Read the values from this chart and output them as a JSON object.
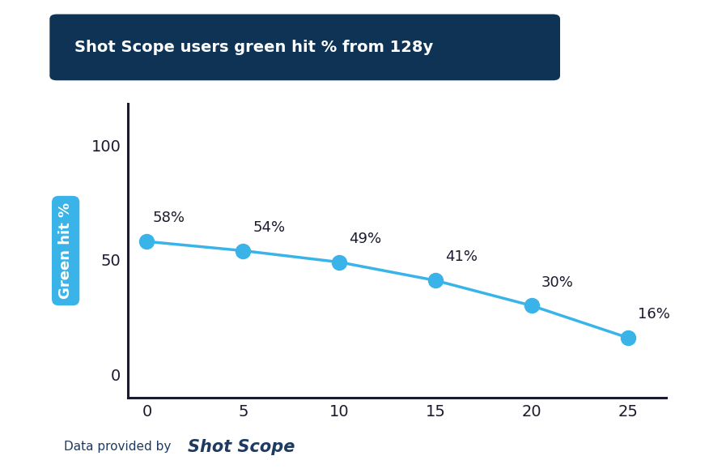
{
  "title": "Shot Scope users green hit % from 128y",
  "title_bg_color": "#0f3354",
  "title_text_color": "#ffffff",
  "x_values": [
    0,
    5,
    10,
    15,
    20,
    25
  ],
  "y_values": [
    58,
    54,
    49,
    41,
    30,
    16
  ],
  "labels": [
    "58%",
    "54%",
    "49%",
    "41%",
    "30%",
    "16%"
  ],
  "label_offsets_x": [
    0.3,
    0.5,
    0.5,
    0.5,
    0.5,
    0.5
  ],
  "label_offsets_y": [
    7,
    7,
    7,
    7,
    7,
    7
  ],
  "line_color": "#3ab4e8",
  "marker_color": "#3ab4e8",
  "ylabel": "Green hit %",
  "ylabel_bg_color": "#3ab4e8",
  "ylabel_text_color": "#ffffff",
  "xlim": [
    -1,
    27
  ],
  "ylim": [
    -10,
    118
  ],
  "yticks": [
    0,
    50,
    100
  ],
  "xticks": [
    0,
    5,
    10,
    15,
    20,
    25
  ],
  "background_color": "#ffffff",
  "tick_label_color": "#1a1a2e",
  "annotation_color": "#1a1a2e",
  "footer_text": "Data provided by",
  "footer_brand": "Shot Scope",
  "footer_color": "#1e3a5f",
  "spine_color": "#1a1a2e",
  "line_width": 2.5,
  "marker_size": 13,
  "annotation_fontsize": 13,
  "tick_fontsize": 14
}
